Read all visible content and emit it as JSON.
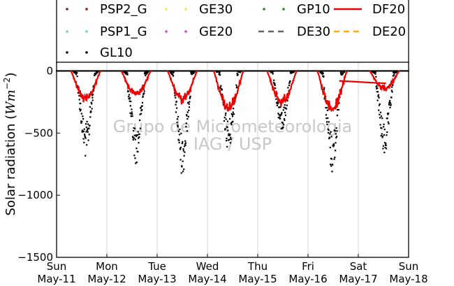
{
  "chart_data": {
    "type": "scatter",
    "ylabel": "Solar radiation ($Wm^{-2}$)",
    "ylim": [
      -1500,
      70
    ],
    "yticks": [
      0,
      -500,
      -1000,
      -1500
    ],
    "xlim": [
      0,
      7
    ],
    "xticks": [
      {
        "x": 0,
        "day": "Sun",
        "date": "May-11"
      },
      {
        "x": 1,
        "day": "Mon",
        "date": "May-12"
      },
      {
        "x": 2,
        "day": "Tue",
        "date": "May-13"
      },
      {
        "x": 3,
        "day": "Wed",
        "date": "May-14"
      },
      {
        "x": 4,
        "day": "Thu",
        "date": "May-15"
      },
      {
        "x": 5,
        "day": "Fri",
        "date": "May-16"
      },
      {
        "x": 6,
        "day": "Sat",
        "date": "May-17"
      },
      {
        "x": 7,
        "day": "Sun",
        "date": "May-18"
      }
    ],
    "grid": "vertical",
    "legend_position": "top",
    "watermark": [
      "Grupo de Micrometeorologia",
      "IAG / USP"
    ],
    "series": [
      {
        "name": "PSP2_G",
        "color": "#8b1a1a",
        "style": "dots"
      },
      {
        "name": "GE30",
        "color": "#f5e642",
        "style": "dots"
      },
      {
        "name": "GP10",
        "color": "#1a8a1a",
        "style": "dots"
      },
      {
        "name": "DF20",
        "color": "#ee0000",
        "style": "line"
      },
      {
        "name": "PSP1_G",
        "color": "#5fd9c8",
        "style": "dots"
      },
      {
        "name": "GE20",
        "color": "#e040e0",
        "style": "dots"
      },
      {
        "name": "DE30",
        "color": "#666666",
        "style": "dashed"
      },
      {
        "name": "DE20",
        "color": "#ffb000",
        "style": "dashed"
      },
      {
        "name": "GL10",
        "color": "#000000",
        "style": "dots"
      }
    ],
    "daily_peaks": [
      {
        "day": 0,
        "center": 0.58,
        "gl10_min": -700,
        "df20_min": -290
      },
      {
        "day": 1,
        "center": 1.58,
        "gl10_min": -750,
        "df20_min": -250
      },
      {
        "day": 2,
        "center": 2.5,
        "gl10_min": -840,
        "df20_min": -300
      },
      {
        "day": 3,
        "center": 3.42,
        "gl10_min": -650,
        "df20_min": -400
      },
      {
        "day": 4,
        "center": 4.48,
        "gl10_min": -500,
        "df20_min": -330
      },
      {
        "day": 5,
        "center": 5.48,
        "gl10_min": -830,
        "df20_min": -400
      },
      {
        "day": 6,
        "center": 6.52,
        "gl10_min": -700,
        "df20_min": -190
      }
    ],
    "df20_gap_line": {
      "x": [
        5.62,
        6.55
      ],
      "y": [
        -80,
        -100
      ]
    }
  }
}
